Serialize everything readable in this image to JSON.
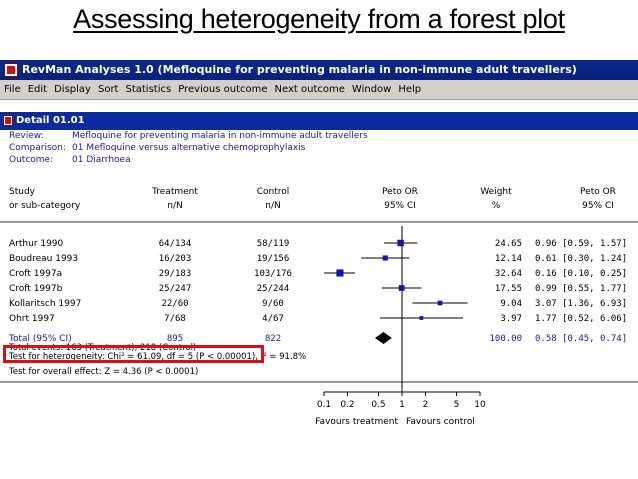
{
  "slide_title": "Assessing heterogeneity from a forest plot",
  "window": {
    "title": "RevMan Analyses 1.0 (Mefloquine for preventing malaria in non-immune adult travellers)",
    "menu": [
      "File",
      "Edit",
      "Display",
      "Sort",
      "Statistics",
      "Previous outcome",
      "Next outcome",
      "Window",
      "Help"
    ],
    "detail_title": "Detail 01.01"
  },
  "meta": {
    "review_label": "Review:",
    "review": "Mefloquine for preventing malaria in non-immune adult travellers",
    "comparison_label": "Comparison:",
    "comparison": "01 Mefloquine versus alternative chemoprophylaxis",
    "outcome_label": "Outcome:",
    "outcome": "01 Diarrhoea"
  },
  "headers": {
    "study_1": "Study",
    "study_2": "or sub-category",
    "treatment_1": "Treatment",
    "treatment_2": "n/N",
    "control_1": "Control",
    "control_2": "n/N",
    "plot_1": "Peto OR",
    "plot_2": "95% CI",
    "weight_1": "Weight",
    "weight_2": "%",
    "or_1": "Peto OR",
    "or_2": "95% CI"
  },
  "studies": [
    {
      "name": "Arthur 1990",
      "treatment": "64/134",
      "control": "58/119",
      "weight": "24.65",
      "or_text": "0.96 [0.59, 1.57]",
      "or": 0.96,
      "lo": 0.59,
      "hi": 1.57,
      "w": 24.65
    },
    {
      "name": "Boudreau 1993",
      "treatment": "16/203",
      "control": "19/156",
      "weight": "12.14",
      "or_text": "0.61 [0.30, 1.24]",
      "or": 0.61,
      "lo": 0.3,
      "hi": 1.24,
      "w": 12.14
    },
    {
      "name": "Croft 1997a",
      "treatment": "29/183",
      "control": "103/176",
      "weight": "32.64",
      "or_text": "0.16 [0.10, 0.25]",
      "or": 0.16,
      "lo": 0.1,
      "hi": 0.25,
      "w": 32.64
    },
    {
      "name": "Croft 1997b",
      "treatment": "25/247",
      "control": "25/244",
      "weight": "17.55",
      "or_text": "0.99 [0.55, 1.77]",
      "or": 0.99,
      "lo": 0.55,
      "hi": 1.77,
      "w": 17.55
    },
    {
      "name": "Kollaritsch 1997",
      "treatment": "22/60",
      "control": "9/60",
      "weight": "9.04",
      "or_text": "3.07 [1.36, 6.93]",
      "or": 3.07,
      "lo": 1.36,
      "hi": 6.93,
      "w": 9.04
    },
    {
      "name": "Ohrt 1997",
      "treatment": "7/68",
      "control": "4/67",
      "weight": "3.97",
      "or_text": "1.77 [0.52, 6.06]",
      "or": 1.77,
      "lo": 0.52,
      "hi": 6.06,
      "w": 3.97
    }
  ],
  "total": {
    "label": "Total (95% CI)",
    "treatment": "895",
    "control": "822",
    "weight": "100.00",
    "or_text": "0.58 [0.45, 0.74]",
    "or": 0.58,
    "lo": 0.45,
    "hi": 0.74
  },
  "stats": {
    "events": "Total events: 163 (Treatment), 218 (Control)",
    "heterogeneity": "Test for heterogeneity: Chi² = 61.09, df = 5 (P < 0.00001), I² = 91.8%",
    "overall": "Test for overall effect: Z = 4.36 (P < 0.0001)"
  },
  "axis": {
    "ticks": [
      0.1,
      0.2,
      0.5,
      1,
      2,
      5,
      10
    ],
    "tick_labels": [
      "0.1",
      "0.2",
      "0.5",
      "1",
      "2",
      "5",
      "10"
    ],
    "favours_left": "Favours treatment",
    "favours_right": "Favours control"
  },
  "colors": {
    "marker": "#1414b4",
    "highlight": "#e10c12"
  }
}
